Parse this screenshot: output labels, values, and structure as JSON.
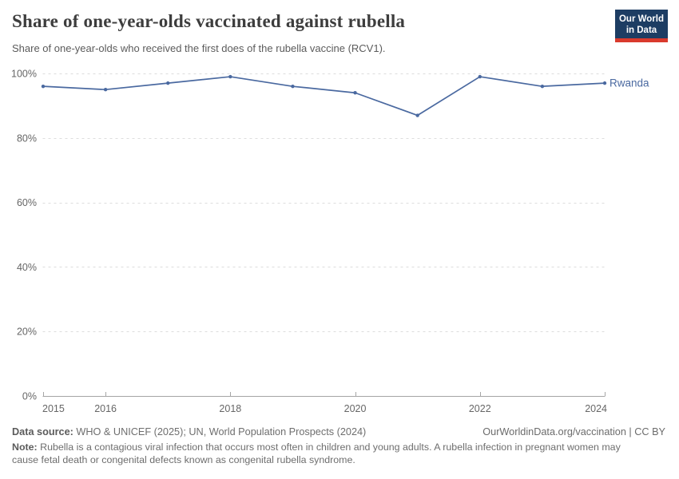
{
  "header": {
    "title": "Share of one-year-olds vaccinated against rubella",
    "subtitle": "Share of one-year-olds who received the first does of the rubella vaccine (RCV1).",
    "logo": {
      "line1": "Our World",
      "line2": "in Data",
      "bg": "#1d3d63",
      "accent": "#d93a2d"
    }
  },
  "chart_data": {
    "type": "line",
    "title": "Share of one-year-olds vaccinated against rubella",
    "x": [
      2015,
      2016,
      2017,
      2018,
      2019,
      2020,
      2021,
      2022,
      2023,
      2024
    ],
    "series": [
      {
        "name": "Rwanda",
        "color": "#4a69a0",
        "values": [
          96,
          95,
          97,
          99,
          96,
          94,
          87,
          99,
          96,
          97
        ]
      }
    ],
    "ylabel": "",
    "xlabel": "",
    "ylim": [
      0,
      100
    ],
    "yticks": [
      0,
      20,
      40,
      60,
      80,
      100
    ],
    "y_suffix": "%",
    "xticks": [
      2015,
      2016,
      2018,
      2020,
      2022,
      2024
    ],
    "grid": "horizontal-dashed",
    "legend": "line-end-label",
    "colors": {
      "grid": "#dddddd",
      "axis": "#a5a5a5",
      "tick_text": "#666666"
    }
  },
  "footer": {
    "datasource_label": "Data source:",
    "datasource_text": " WHO & UNICEF (2025); UN, World Population Prospects (2024)",
    "credit": "OurWorldinData.org/vaccination | CC BY",
    "note_label": "Note:",
    "note_text": " Rubella is a contagious viral infection that occurs most often in children and young adults. A rubella infection in pregnant women may cause fetal death or congenital defects known as congenital rubella syndrome."
  }
}
